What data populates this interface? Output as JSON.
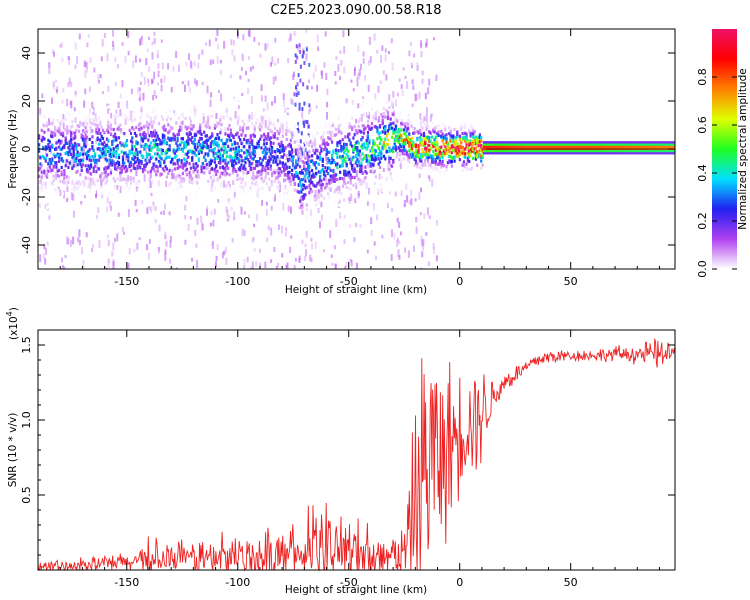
{
  "title": "C2E5.2023.090.00.58.R18",
  "colors": {
    "snr_line": "#ee2222",
    "background": "#ffffff",
    "colormap": [
      "#ffffff",
      "#b040f0",
      "#2020f0",
      "#00e0ff",
      "#20ff20",
      "#e0ff00",
      "#ff8000",
      "#ff0000",
      "#ee1166"
    ]
  },
  "chart_data": [
    {
      "type": "heatmap",
      "title": "C2E5.2023.090.00.58.R18",
      "xlabel": "Height of straight line (km)",
      "ylabel": "Frequency (Hz)",
      "xlim": [
        -190,
        97
      ],
      "ylim": [
        -50,
        50
      ],
      "xticks": [
        -150,
        -100,
        -50,
        0,
        50
      ],
      "yticks": [
        -40,
        -20,
        0,
        20,
        40
      ],
      "colorbar": {
        "label": "Normalized spectral amplitude",
        "range": [
          0.0,
          1.0
        ],
        "ticks": [
          "0.0",
          "0.2",
          "0.4",
          "0.6",
          "0.8"
        ]
      },
      "ridge": {
        "x": [
          -190,
          -170,
          -150,
          -130,
          -110,
          -95,
          -85,
          -78,
          -74,
          -72,
          -68,
          -60,
          -50,
          -40,
          -32,
          -28,
          -24,
          -20,
          -15,
          -10,
          -5,
          0,
          5,
          10,
          30,
          60,
          97
        ],
        "center_hz": [
          -2,
          -2,
          -1,
          -1,
          -1,
          -2,
          -2,
          -4,
          -8,
          -16,
          -10,
          -6,
          -3,
          0,
          3,
          5,
          3,
          0,
          1,
          0,
          0,
          0,
          0,
          0,
          0,
          0,
          0
        ],
        "peak_amplitude": [
          0.3,
          0.3,
          0.35,
          0.35,
          0.35,
          0.3,
          0.25,
          0.25,
          0.3,
          0.3,
          0.3,
          0.35,
          0.4,
          0.45,
          0.55,
          0.6,
          0.65,
          0.8,
          0.85,
          0.85,
          0.9,
          0.9,
          0.9,
          0.9,
          0.85,
          0.85,
          0.8
        ]
      }
    },
    {
      "type": "line",
      "xlabel": "Height of straight line (km)",
      "ylabel": "SNR (10 * v/v)",
      "y_multiplier": "(x10",
      "y_multiplier_exp": "4",
      "y_multiplier_close": ")",
      "xlim": [
        -190,
        97
      ],
      "ylim": [
        0,
        1.6
      ],
      "xticks": [
        -150,
        -100,
        -50,
        0,
        50
      ],
      "yticks": [
        "0.5",
        "1.0",
        "1.5"
      ],
      "envelope": {
        "x": [
          -190,
          -175,
          -150,
          -125,
          -100,
          -80,
          -60,
          -45,
          -35,
          -25,
          -22,
          -18,
          -15,
          -12,
          -8,
          -5,
          0,
          5,
          10,
          15,
          20,
          25,
          30,
          35,
          40,
          50,
          60,
          70,
          80,
          90,
          97
        ],
        "mean": [
          0.02,
          0.03,
          0.05,
          0.08,
          0.08,
          0.1,
          0.12,
          0.12,
          0.08,
          0.1,
          0.3,
          0.6,
          0.7,
          0.8,
          0.75,
          0.8,
          0.95,
          1.0,
          1.05,
          1.15,
          1.25,
          1.3,
          1.35,
          1.4,
          1.42,
          1.43,
          1.43,
          1.44,
          1.44,
          1.44,
          1.44
        ],
        "noise": [
          0.02,
          0.03,
          0.05,
          0.08,
          0.1,
          0.12,
          0.15,
          0.2,
          0.1,
          0.15,
          0.35,
          0.6,
          0.7,
          0.55,
          0.45,
          0.45,
          0.3,
          0.3,
          0.25,
          0.1,
          0.06,
          0.05,
          0.04,
          0.04,
          0.04,
          0.03,
          0.03,
          0.04,
          0.05,
          0.08,
          0.05
        ]
      }
    }
  ]
}
